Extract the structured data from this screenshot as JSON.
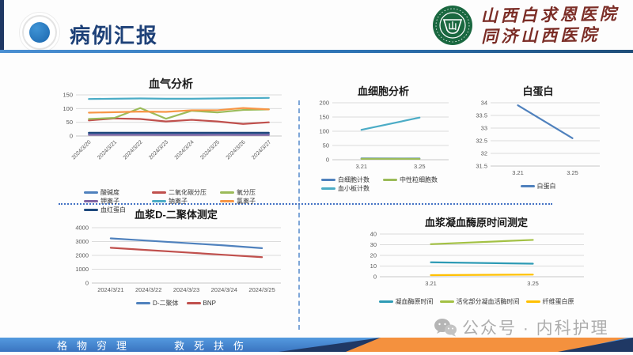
{
  "slide": {
    "title": "病例汇报",
    "hospital_line1": "山西白求恩医院",
    "hospital_line2": "同济山西医院",
    "footer_motto_left": "格物穷理",
    "footer_motto_right": "救死扶伤",
    "watermark": "公众号 · 内科护理"
  },
  "colors": {
    "header_navy": "#1F3864",
    "title_blue": "#1E4178",
    "header_line_blue": "#2E74B5",
    "separator_blue": "#4472C4",
    "footer_blue": "#3A74C0",
    "footer_orange": "#F4913E",
    "seal_green": "#1A6840",
    "calligraphy_red": "#7B2D26",
    "watermark_gray": "#ADADAD"
  },
  "chart_data": [
    {
      "type": "line",
      "title": "血气分析",
      "categories": [
        "2024/3/20",
        "2024/3/21",
        "2024/3/22",
        "2024/3/23",
        "2024/3/24",
        "2024/3/25",
        "2024/3/26",
        "2024/3/27"
      ],
      "series": [
        {
          "name": "酸碱度",
          "color": "#4F81BD",
          "values": [
            7.4,
            7.4,
            7.4,
            7.4,
            7.4,
            7.4,
            7.4,
            7.4
          ]
        },
        {
          "name": "二氧化碳分压",
          "color": "#C0504D",
          "values": [
            57,
            64,
            62,
            53,
            59,
            53,
            44,
            50
          ]
        },
        {
          "name": "氧分压",
          "color": "#9BBB59",
          "values": [
            62,
            66,
            102,
            63,
            92,
            86,
            95,
            97
          ]
        },
        {
          "name": "钾离子",
          "color": "#8064A2",
          "values": [
            4.2,
            4.2,
            4.1,
            4.0,
            4.0,
            4.1,
            4.0,
            4.0
          ]
        },
        {
          "name": "钠离子",
          "color": "#4BACC6",
          "values": [
            135,
            136,
            137,
            136,
            136,
            137,
            138,
            139
          ]
        },
        {
          "name": "氯离子",
          "color": "#F79646",
          "values": [
            85,
            87,
            89,
            88,
            94,
            94,
            102,
            97
          ]
        },
        {
          "name": "血红蛋白",
          "color": "#1F497D",
          "values": [
            12,
            12,
            12,
            12,
            12,
            12,
            12,
            12
          ]
        }
      ],
      "ylim": [
        0,
        150
      ],
      "yticks": [
        0,
        50,
        100,
        150
      ],
      "grid": true,
      "legend_position": "bottom",
      "x_rotate": true
    },
    {
      "type": "line",
      "title": "血细胞分析",
      "categories": [
        "3.21",
        "3.25"
      ],
      "series": [
        {
          "name": "白细胞计数",
          "color": "#4F81BD",
          "values": [
            4.5,
            4.2
          ]
        },
        {
          "name": "中性粒细胞数",
          "color": "#9BBB59",
          "values": [
            3.2,
            3.0
          ]
        },
        {
          "name": "血小板计数",
          "color": "#4BACC6",
          "values": [
            105,
            148
          ]
        }
      ],
      "ylim": [
        0,
        200
      ],
      "yticks": [
        0,
        50,
        100,
        150,
        200
      ],
      "grid": true,
      "legend_position": "bottom",
      "x_rotate": false
    },
    {
      "type": "line",
      "title": "白蛋白",
      "categories": [
        "3.21",
        "3.25"
      ],
      "series": [
        {
          "name": "白蛋白",
          "color": "#4F81BD",
          "values": [
            33.9,
            32.6
          ]
        }
      ],
      "ylim": [
        31.5,
        34
      ],
      "yticks": [
        31.5,
        32,
        32.5,
        33,
        33.5,
        34
      ],
      "grid": true,
      "legend_position": "bottom",
      "x_rotate": false
    },
    {
      "type": "line",
      "title": "血浆D-二聚体测定",
      "categories": [
        "2024/3/21",
        "2024/3/22",
        "2024/3/23",
        "2024/3/24",
        "2024/3/25"
      ],
      "series": [
        {
          "name": "D-二聚体",
          "color": "#4F81BD",
          "values": [
            3230,
            3060,
            2890,
            2720,
            2520
          ]
        },
        {
          "name": "BNP",
          "color": "#C0504D",
          "values": [
            2550,
            2380,
            2210,
            2040,
            1870
          ]
        }
      ],
      "ylim": [
        0,
        4000
      ],
      "yticks": [
        0,
        1000,
        2000,
        3000,
        4000
      ],
      "grid": true,
      "legend_position": "bottom",
      "x_rotate": false
    },
    {
      "type": "line",
      "title": "血浆凝血酶原时间测定",
      "categories": [
        "3.21",
        "3.25"
      ],
      "series": [
        {
          "name": "凝血酶原时间",
          "color": "#2E9BB5",
          "values": [
            13.5,
            12.2
          ]
        },
        {
          "name": "活化部分凝血活酶时间",
          "color": "#A3C144",
          "values": [
            30.5,
            34.5
          ]
        },
        {
          "name": "纤维蛋白原",
          "color": "#FFC000",
          "values": [
            1.5,
            2.0
          ]
        }
      ],
      "ylim": [
        0,
        40
      ],
      "yticks": [
        0,
        10,
        20,
        30,
        40
      ],
      "grid": true,
      "legend_position": "bottom",
      "x_rotate": false
    }
  ]
}
